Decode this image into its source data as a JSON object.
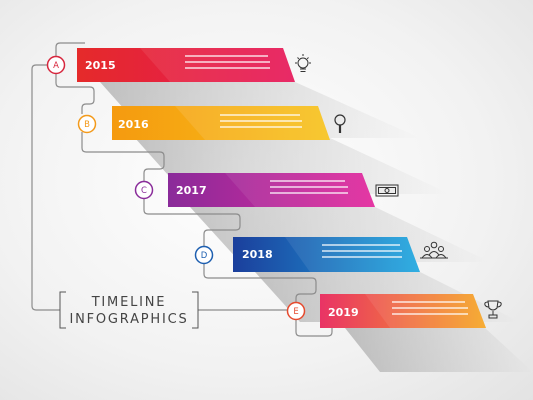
{
  "title": {
    "line1": "TIMELINE",
    "line2": "INFOGRAPHICS"
  },
  "steps": [
    {
      "marker": "A",
      "year": "2015",
      "icon": "lightbulb-icon",
      "color_start": "#e52a2a",
      "color_end": "#e6185a",
      "marker_color": "#d7263d"
    },
    {
      "marker": "B",
      "year": "2016",
      "icon": "magnifier-icon",
      "color_start": "#f59a0f",
      "color_end": "#f7c21a",
      "marker_color": "#f39a1b"
    },
    {
      "marker": "C",
      "year": "2017",
      "icon": "banknote-icon",
      "color_start": "#8a2b9a",
      "color_end": "#e3279c",
      "marker_color": "#8a2d9a"
    },
    {
      "marker": "D",
      "year": "2018",
      "icon": "people-group-icon",
      "color_start": "#1b3f9c",
      "color_end": "#1fa8e0",
      "marker_color": "#1e5fb0"
    },
    {
      "marker": "E",
      "year": "2019",
      "icon": "trophy-icon",
      "color_start": "#e93365",
      "color_end": "#f6a623",
      "marker_color": "#e64a2e"
    }
  ]
}
